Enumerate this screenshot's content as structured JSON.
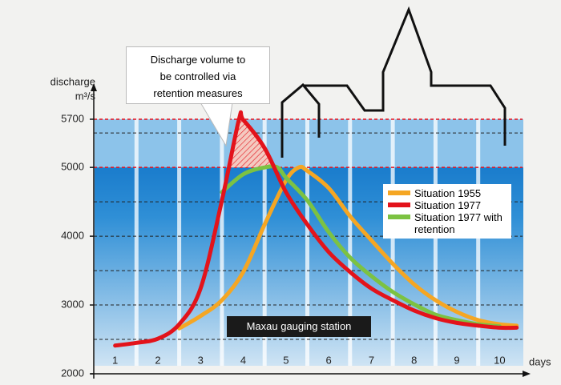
{
  "chart_data": {
    "type": "line",
    "ylabel": "discharge",
    "yunit": "m³/s",
    "xlabel": "days",
    "annotation": [
      "Discharge volume to",
      "be controlled via",
      "retention measures"
    ],
    "station_label": "Maxau gauging station",
    "xlim": [
      0.5,
      10.5
    ],
    "xticks": [
      1,
      2,
      3,
      4,
      5,
      6,
      7,
      8,
      9,
      10
    ],
    "ylim": [
      2000,
      6200
    ],
    "yticks": [
      2000,
      3000,
      4000,
      5000,
      5700
    ],
    "grid_lines": [
      2500,
      3000,
      3500,
      4000,
      4500,
      5500
    ],
    "thresholds": [
      5700,
      5000
    ],
    "threshold_color": "#e8101a",
    "series": [
      {
        "name": "Situation 1955",
        "color": "#f5a623",
        "x": [
          2.5,
          3,
          3.5,
          4,
          4.5,
          5,
          5.3,
          5.5,
          6,
          6.5,
          7,
          7.5,
          8,
          8.5,
          9,
          9.5,
          10,
          10.4
        ],
        "values": [
          2660,
          2840,
          3070,
          3480,
          4170,
          4810,
          5000,
          4950,
          4700,
          4290,
          3940,
          3600,
          3300,
          3070,
          2900,
          2780,
          2720,
          2700
        ]
      },
      {
        "name": "Situation 1977",
        "color": "#e3131b",
        "x": [
          1,
          1.5,
          2,
          2.5,
          3,
          3.5,
          3.9,
          4,
          4.5,
          5,
          5.5,
          6,
          6.5,
          7,
          7.5,
          8,
          8.5,
          9,
          9.5,
          10,
          10.4
        ],
        "values": [
          2410,
          2450,
          2510,
          2720,
          3240,
          4520,
          5700,
          5690,
          5280,
          4640,
          4170,
          3770,
          3480,
          3240,
          3070,
          2920,
          2810,
          2740,
          2700,
          2670,
          2670
        ]
      },
      {
        "name": "Situation 1977 with retention",
        "color": "#7cc242",
        "x": [
          3.5,
          4,
          4.5,
          4.8,
          5,
          5.5,
          6,
          6.5,
          7,
          7.5,
          8,
          8.5,
          9,
          9.5,
          10
        ],
        "values": [
          4640,
          4900,
          5000,
          5000,
          4850,
          4520,
          4060,
          3690,
          3420,
          3190,
          3010,
          2860,
          2780,
          2720,
          2690
        ]
      }
    ]
  }
}
